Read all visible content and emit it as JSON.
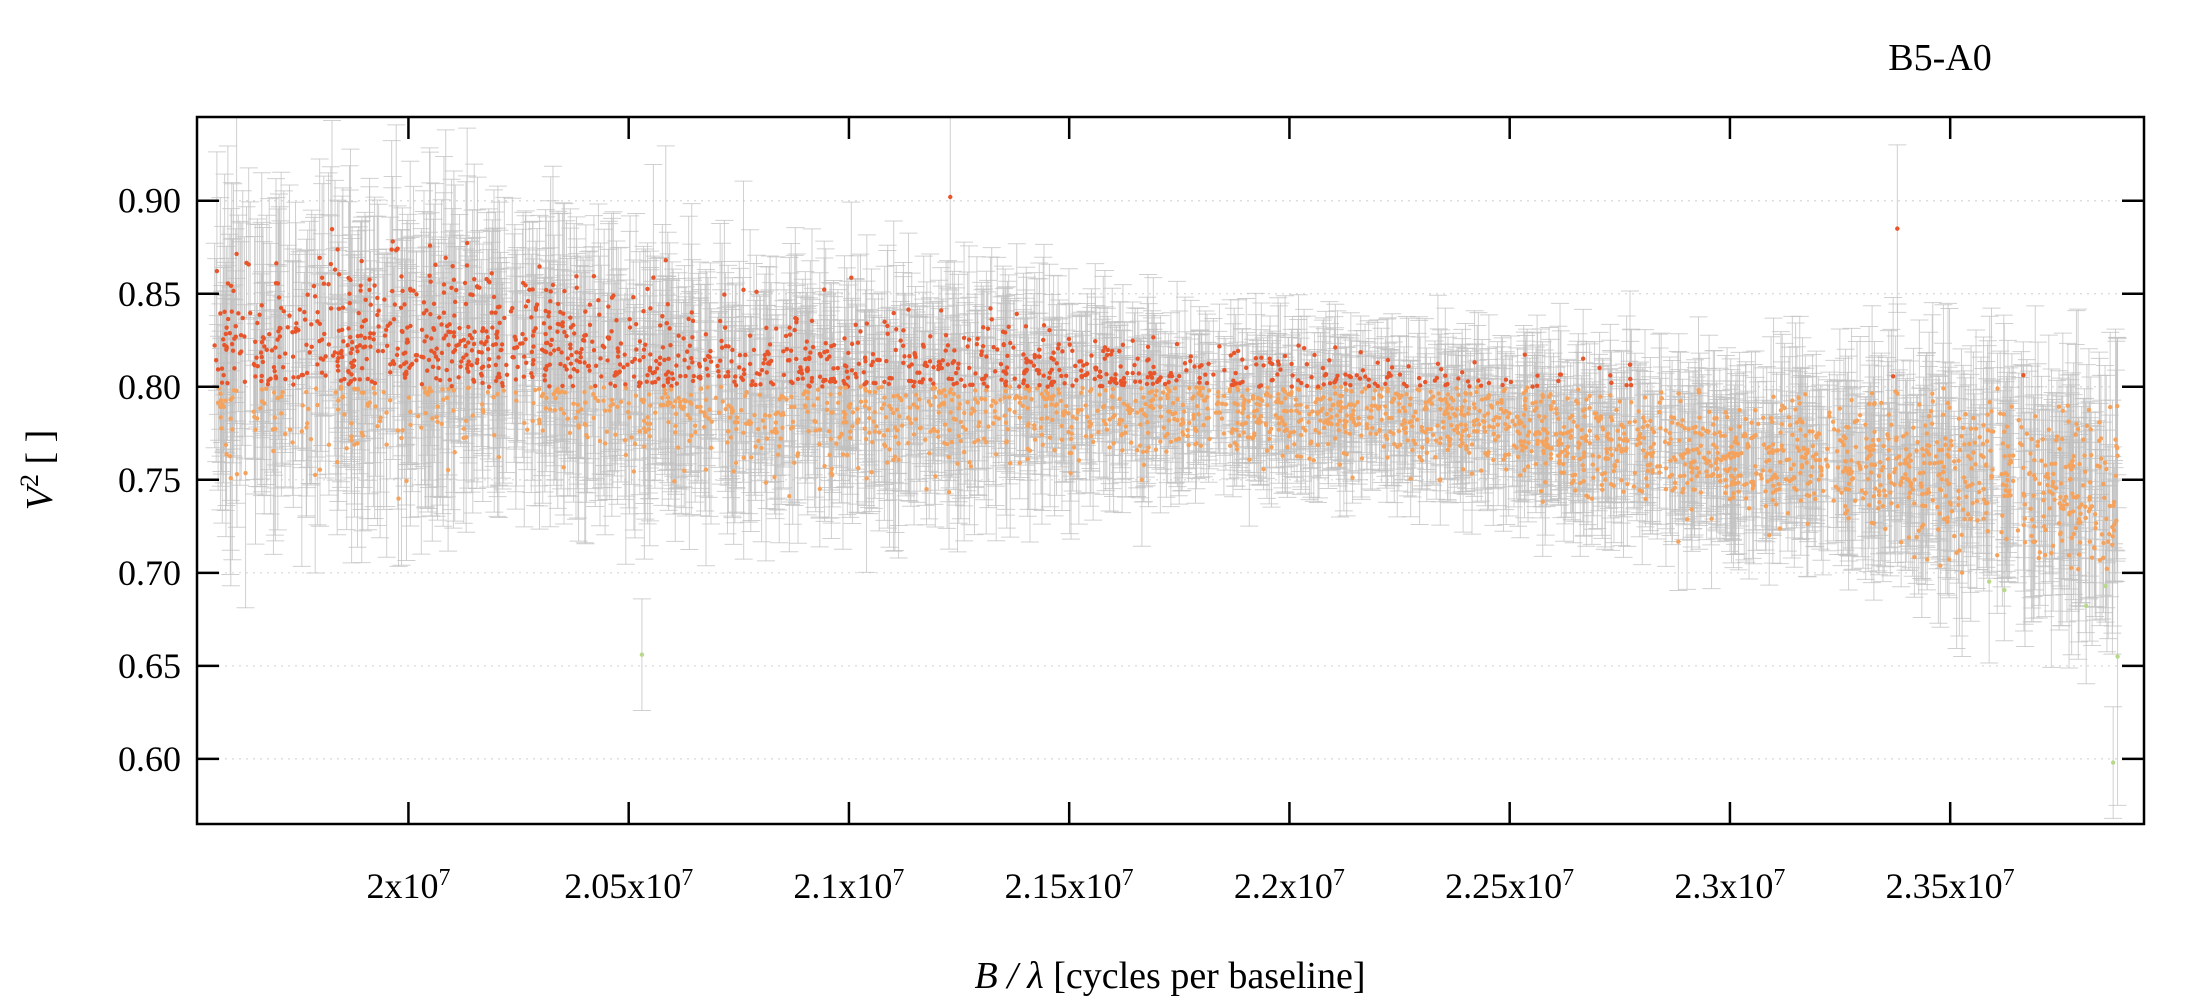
{
  "chart_data": {
    "type": "scatter",
    "title": "B5-A0",
    "xlabel": {
      "var": "B / λ",
      "unit": " [cycles per baseline]"
    },
    "ylabel": {
      "var": "V",
      "sup": "2",
      "unit": " [ ]"
    },
    "xlim": [
      19520000,
      23940000
    ],
    "ylim": [
      0.565,
      0.945
    ],
    "xticks": [
      {
        "value": 20000000,
        "mant": "2x10",
        "exp": "7"
      },
      {
        "value": 20500000,
        "mant": "2.05x10",
        "exp": "7"
      },
      {
        "value": 21000000,
        "mant": "2.1x10",
        "exp": "7"
      },
      {
        "value": 21500000,
        "mant": "2.15x10",
        "exp": "7"
      },
      {
        "value": 22000000,
        "mant": "2.2x10",
        "exp": "7"
      },
      {
        "value": 22500000,
        "mant": "2.25x10",
        "exp": "7"
      },
      {
        "value": 23000000,
        "mant": "2.3x10",
        "exp": "7"
      },
      {
        "value": 23500000,
        "mant": "2.35x10",
        "exp": "7"
      }
    ],
    "yticks": [
      {
        "value": 0.6,
        "label": "0.60"
      },
      {
        "value": 0.65,
        "label": "0.65"
      },
      {
        "value": 0.7,
        "label": "0.70"
      },
      {
        "value": 0.75,
        "label": "0.75"
      },
      {
        "value": 0.8,
        "label": "0.80"
      },
      {
        "value": 0.85,
        "label": "0.85"
      },
      {
        "value": 0.9,
        "label": "0.90"
      }
    ],
    "grid": "horizontal-dotted",
    "legend": "none",
    "colors": {
      "error_bar": "#c0c0c0",
      "point_high": "#e8552a",
      "point_mid": "#f5a25d",
      "point_low": "#b8d98a"
    },
    "trend": [
      {
        "x": 19560000,
        "y": 0.812,
        "spread": 0.06
      },
      {
        "x": 20000000,
        "y": 0.818,
        "spread": 0.058
      },
      {
        "x": 20300000,
        "y": 0.82,
        "spread": 0.052
      },
      {
        "x": 20600000,
        "y": 0.8,
        "spread": 0.05
      },
      {
        "x": 21000000,
        "y": 0.797,
        "spread": 0.045
      },
      {
        "x": 21400000,
        "y": 0.797,
        "spread": 0.04
      },
      {
        "x": 21800000,
        "y": 0.792,
        "spread": 0.03
      },
      {
        "x": 22200000,
        "y": 0.788,
        "spread": 0.03
      },
      {
        "x": 22600000,
        "y": 0.775,
        "spread": 0.032
      },
      {
        "x": 23000000,
        "y": 0.76,
        "spread": 0.035
      },
      {
        "x": 23400000,
        "y": 0.757,
        "spread": 0.042
      },
      {
        "x": 23880000,
        "y": 0.74,
        "spread": 0.055
      }
    ],
    "outliers": [
      {
        "x": 20530000,
        "y": 0.656,
        "err": 0.03
      },
      {
        "x": 21230000,
        "y": 0.902,
        "err": 0.05
      },
      {
        "x": 23380000,
        "y": 0.885,
        "err": 0.045
      },
      {
        "x": 23870000,
        "y": 0.598,
        "err": 0.03
      },
      {
        "x": 23880000,
        "y": 0.655,
        "err": 0.08
      }
    ],
    "point_count": 3400
  }
}
